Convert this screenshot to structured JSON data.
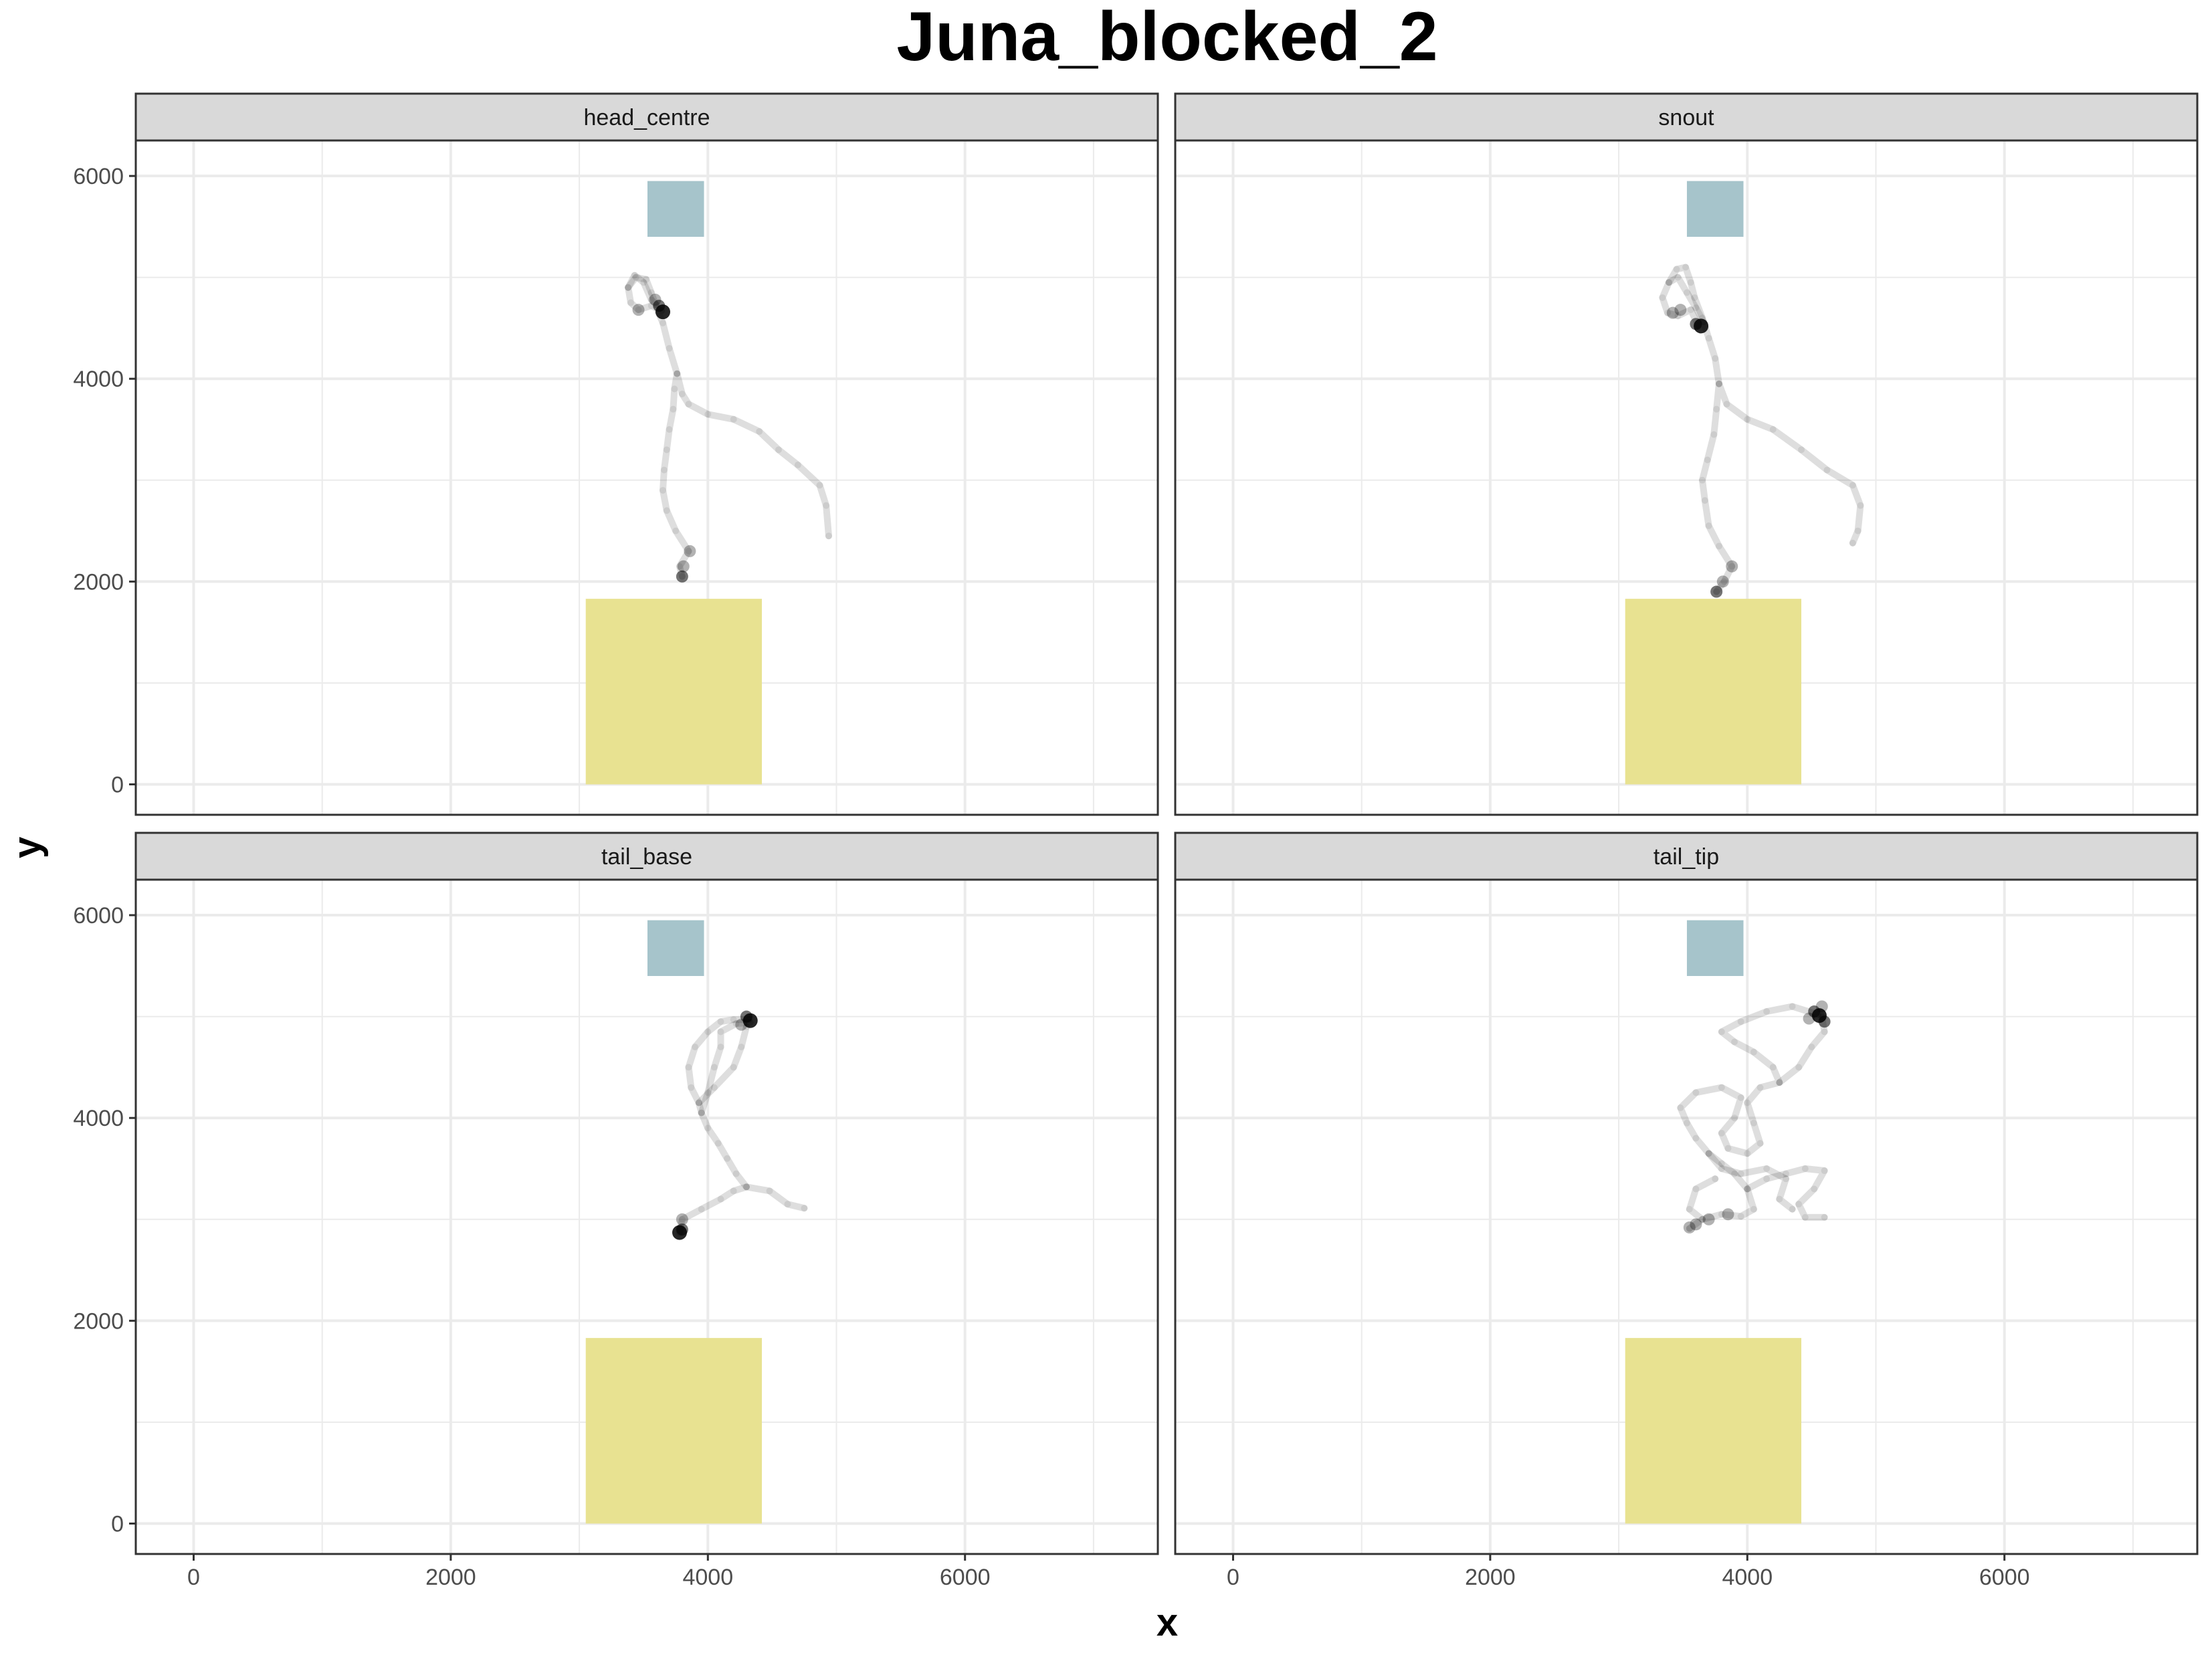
{
  "chart_data": {
    "type": "scatter",
    "title": "Juna_blocked_2",
    "xlabel": "x",
    "ylabel": "y",
    "xlim": [
      -450,
      7500
    ],
    "ylim": [
      -300,
      6350
    ],
    "x_ticks": [
      0,
      2000,
      4000,
      6000
    ],
    "y_ticks": [
      0,
      2000,
      4000,
      6000
    ],
    "grid": true,
    "colors": {
      "path": "#000000",
      "blue_zone": "#a6c4cb",
      "yellow_zone": "#e8e291",
      "strip_fill": "#d9d9d9",
      "grid": "#ebebeb"
    },
    "zones": [
      {
        "color": "blue",
        "x": [
          3530,
          3970
        ],
        "y": [
          5400,
          5950
        ]
      },
      {
        "color": "yellow",
        "x": [
          3050,
          4420
        ],
        "y": [
          0,
          1830
        ]
      }
    ],
    "panels": [
      {
        "label": "head_centre",
        "trails": [
          [
            [
              3800,
              2050
            ],
            [
              3780,
              2150
            ],
            [
              3850,
              2300
            ],
            [
              3750,
              2500
            ],
            [
              3680,
              2700
            ],
            [
              3650,
              2900
            ],
            [
              3660,
              3100
            ],
            [
              3680,
              3300
            ],
            [
              3700,
              3500
            ],
            [
              3730,
              3700
            ],
            [
              3740,
              3900
            ],
            [
              3760,
              4050
            ],
            [
              3800,
              3850
            ],
            [
              3850,
              3750
            ],
            [
              4000,
              3650
            ],
            [
              4200,
              3600
            ],
            [
              4400,
              3480
            ],
            [
              4550,
              3300
            ],
            [
              4700,
              3150
            ],
            [
              4870,
              2950
            ],
            [
              4920,
              2750
            ],
            [
              4940,
              2450
            ]
          ],
          [
            [
              3760,
              4050
            ],
            [
              3700,
              4300
            ],
            [
              3650,
              4550
            ],
            [
              3600,
              4700
            ],
            [
              3560,
              4850
            ],
            [
              3520,
              4980
            ],
            [
              3440,
              5000
            ],
            [
              3380,
              4900
            ],
            [
              3400,
              4750
            ],
            [
              3460,
              4680
            ],
            [
              3560,
              4720
            ],
            [
              3640,
              4670
            ]
          ],
          [
            [
              3380,
              4900
            ],
            [
              3430,
              5020
            ],
            [
              3500,
              4950
            ],
            [
              3560,
              4780
            ],
            [
              3600,
              4730
            ]
          ]
        ],
        "clusters": [
          [
            3650,
            4660,
            3
          ],
          [
            3620,
            4720,
            2
          ],
          [
            3590,
            4780,
            1
          ],
          [
            3460,
            4680,
            1
          ],
          [
            3800,
            2050,
            2
          ],
          [
            3810,
            2150,
            1
          ],
          [
            3860,
            2300,
            1
          ]
        ]
      },
      {
        "label": "snout",
        "trails": [
          [
            [
              3760,
              1900
            ],
            [
              3820,
              2000
            ],
            [
              3880,
              2150
            ],
            [
              3780,
              2350
            ],
            [
              3700,
              2550
            ],
            [
              3670,
              2800
            ],
            [
              3650,
              3000
            ],
            [
              3690,
              3200
            ],
            [
              3740,
              3450
            ],
            [
              3760,
              3700
            ],
            [
              3780,
              3950
            ],
            [
              3840,
              3750
            ],
            [
              4000,
              3600
            ],
            [
              4200,
              3500
            ],
            [
              4420,
              3300
            ],
            [
              4620,
              3100
            ],
            [
              4820,
              2950
            ],
            [
              4880,
              2750
            ],
            [
              4860,
              2500
            ],
            [
              4820,
              2380
            ]
          ],
          [
            [
              3780,
              3950
            ],
            [
              3750,
              4200
            ],
            [
              3700,
              4400
            ],
            [
              3650,
              4600
            ],
            [
              3590,
              4800
            ],
            [
              3560,
              4950
            ],
            [
              3520,
              5100
            ],
            [
              3450,
              5080
            ],
            [
              3390,
              4950
            ],
            [
              3340,
              4800
            ],
            [
              3380,
              4650
            ],
            [
              3460,
              4620
            ],
            [
              3560,
              4680
            ],
            [
              3620,
              4520
            ]
          ],
          [
            [
              3390,
              4950
            ],
            [
              3460,
              5000
            ],
            [
              3530,
              4850
            ],
            [
              3600,
              4700
            ],
            [
              3660,
              4560
            ]
          ]
        ],
        "clusters": [
          [
            3640,
            4520,
            3
          ],
          [
            3600,
            4540,
            2
          ],
          [
            3480,
            4680,
            1
          ],
          [
            3420,
            4650,
            1
          ],
          [
            3760,
            1900,
            2
          ],
          [
            3810,
            2000,
            1
          ],
          [
            3880,
            2150,
            1
          ]
        ]
      },
      {
        "label": "tail_base",
        "trails": [
          [
            [
              3780,
              2870
            ],
            [
              3800,
              3000
            ],
            [
              3950,
              3100
            ],
            [
              4100,
              3200
            ],
            [
              4200,
              3280
            ],
            [
              4300,
              3320
            ],
            [
              4480,
              3280
            ],
            [
              4620,
              3150
            ],
            [
              4750,
              3110
            ]
          ],
          [
            [
              4300,
              3320
            ],
            [
              4220,
              3450
            ],
            [
              4150,
              3600
            ],
            [
              4080,
              3750
            ],
            [
              4000,
              3900
            ],
            [
              3950,
              4050
            ],
            [
              3930,
              4150
            ],
            [
              3870,
              4300
            ],
            [
              3850,
              4500
            ],
            [
              3900,
              4700
            ],
            [
              4000,
              4850
            ],
            [
              4100,
              4950
            ],
            [
              4200,
              4970
            ],
            [
              4320,
              4970
            ]
          ],
          [
            [
              3950,
              4050
            ],
            [
              4000,
              4250
            ],
            [
              4050,
              4500
            ],
            [
              4100,
              4700
            ],
            [
              4100,
              4850
            ],
            [
              4220,
              4930
            ],
            [
              4330,
              4940
            ]
          ],
          [
            [
              3930,
              4150
            ],
            [
              4050,
              4300
            ],
            [
              4200,
              4500
            ],
            [
              4260,
              4700
            ],
            [
              4300,
              4900
            ]
          ]
        ],
        "clusters": [
          [
            4330,
            4960,
            3
          ],
          [
            4300,
            5000,
            2
          ],
          [
            4260,
            4920,
            1
          ],
          [
            3780,
            2870,
            3
          ],
          [
            3800,
            2900,
            2
          ],
          [
            3800,
            3000,
            1
          ]
        ]
      },
      {
        "label": "tail_tip",
        "trails": [
          [
            [
              3550,
              2910
            ],
            [
              3650,
              3000
            ],
            [
              3800,
              3050
            ],
            [
              3950,
              3030
            ],
            [
              4050,
              3100
            ],
            [
              4000,
              3300
            ],
            [
              3900,
              3450
            ],
            [
              3800,
              3550
            ],
            [
              3700,
              3650
            ],
            [
              3600,
              3800
            ],
            [
              3530,
              3950
            ],
            [
              3480,
              4100
            ],
            [
              3600,
              4250
            ],
            [
              3800,
              4300
            ],
            [
              3950,
              4200
            ],
            [
              3900,
              4000
            ],
            [
              3800,
              3850
            ],
            [
              3850,
              3700
            ],
            [
              4000,
              3650
            ],
            [
              4100,
              3750
            ],
            [
              4050,
              3950
            ],
            [
              4000,
              4150
            ],
            [
              4100,
              4300
            ],
            [
              4250,
              4350
            ],
            [
              4200,
              4500
            ],
            [
              4050,
              4650
            ],
            [
              3900,
              4750
            ],
            [
              3800,
              4850
            ],
            [
              3950,
              4950
            ],
            [
              4150,
              5050
            ],
            [
              4350,
              5100
            ],
            [
              4550,
              5020
            ]
          ],
          [
            [
              4000,
              3300
            ],
            [
              4150,
              3400
            ],
            [
              4300,
              3450
            ],
            [
              4450,
              3500
            ],
            [
              4600,
              3480
            ],
            [
              4520,
              3300
            ],
            [
              4400,
              3150
            ],
            [
              4450,
              3020
            ],
            [
              4600,
              3020
            ]
          ],
          [
            [
              3700,
              3650
            ],
            [
              3800,
              3500
            ],
            [
              3950,
              3450
            ],
            [
              4150,
              3500
            ],
            [
              4300,
              3400
            ],
            [
              4250,
              3200
            ],
            [
              4350,
              3100
            ]
          ],
          [
            [
              4250,
              4350
            ],
            [
              4400,
              4500
            ],
            [
              4500,
              4700
            ],
            [
              4600,
              4850
            ],
            [
              4580,
              5000
            ]
          ],
          [
            [
              3650,
              3000
            ],
            [
              3550,
              3100
            ],
            [
              3600,
              3300
            ],
            [
              3750,
              3400
            ]
          ]
        ],
        "clusters": [
          [
            4560,
            5010,
            3
          ],
          [
            4520,
            5050,
            2
          ],
          [
            4600,
            4950,
            2
          ],
          [
            4480,
            4980,
            1
          ],
          [
            4580,
            5100,
            1
          ],
          [
            3600,
            2950,
            1
          ],
          [
            3700,
            3000,
            1
          ],
          [
            3850,
            3050,
            1
          ],
          [
            3550,
            2920,
            1
          ]
        ]
      }
    ]
  }
}
